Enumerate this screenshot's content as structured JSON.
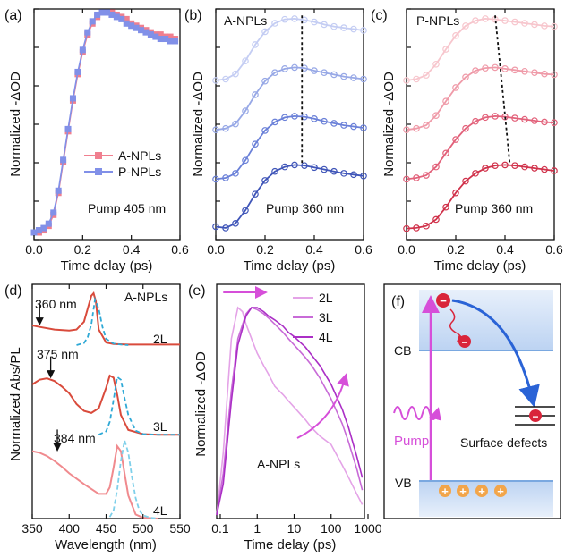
{
  "chart_data": [
    {
      "panel": "(a)",
      "type": "line",
      "xlabel": "Time delay (ps)",
      "ylabel": "Normalized -ΔOD",
      "xlim": [
        0,
        0.6
      ],
      "xticks": [
        "0.0",
        "0.2",
        "0.4",
        "0.6"
      ],
      "annotation": "Pump 405 nm",
      "legend": [
        "A-NPLs",
        "P-NPLs"
      ],
      "series": [
        {
          "name": "A-NPLs",
          "color": "#f07f8f",
          "x": [
            0.0,
            0.02,
            0.04,
            0.06,
            0.08,
            0.1,
            0.12,
            0.14,
            0.16,
            0.18,
            0.2,
            0.22,
            0.24,
            0.26,
            0.28,
            0.3,
            0.32,
            0.34,
            0.36,
            0.38,
            0.4,
            0.42,
            0.44,
            0.46,
            0.48,
            0.5,
            0.52,
            0.54,
            0.56,
            0.58
          ],
          "y": [
            0.0,
            0.0,
            0.01,
            0.03,
            0.08,
            0.18,
            0.32,
            0.46,
            0.6,
            0.72,
            0.82,
            0.9,
            0.95,
            0.98,
            1.0,
            1.0,
            1.0,
            0.99,
            0.98,
            0.97,
            0.95,
            0.94,
            0.93,
            0.92,
            0.91,
            0.9,
            0.9,
            0.89,
            0.89,
            0.88
          ]
        },
        {
          "name": "P-NPLs",
          "color": "#8190e8",
          "x": [
            0.0,
            0.02,
            0.04,
            0.06,
            0.08,
            0.1,
            0.12,
            0.14,
            0.16,
            0.18,
            0.2,
            0.22,
            0.24,
            0.26,
            0.28,
            0.3,
            0.32,
            0.34,
            0.36,
            0.38,
            0.4,
            0.42,
            0.44,
            0.46,
            0.48,
            0.5,
            0.52,
            0.54,
            0.56,
            0.58
          ],
          "y": [
            0.0,
            0.01,
            0.02,
            0.04,
            0.09,
            0.19,
            0.33,
            0.47,
            0.61,
            0.73,
            0.83,
            0.91,
            0.96,
            0.99,
            1.0,
            1.0,
            0.99,
            0.98,
            0.97,
            0.95,
            0.94,
            0.93,
            0.92,
            0.91,
            0.9,
            0.89,
            0.88,
            0.88,
            0.87,
            0.87
          ]
        }
      ]
    },
    {
      "panel": "(b)",
      "type": "line",
      "title": "A-NPLs",
      "xlabel": "Time delay (ps)",
      "ylabel": "Normalized -ΔOD",
      "xlim": [
        0,
        0.6
      ],
      "xticks": [
        "0.0",
        "0.2",
        "0.4",
        "0.6"
      ],
      "annotation": "Pump 360 nm",
      "peak_marker_x": [
        0.35,
        0.35
      ],
      "offsets": [
        0.0,
        0.75,
        1.5,
        2.25
      ],
      "ylim": [
        -0.15,
        3.4
      ],
      "colors": [
        "#3f55b8",
        "#6a80d8",
        "#97a8e6",
        "#c4cdf3"
      ],
      "x": [
        0.0,
        0.04,
        0.08,
        0.12,
        0.16,
        0.2,
        0.24,
        0.28,
        0.32,
        0.36,
        0.4,
        0.44,
        0.48,
        0.52,
        0.56,
        0.6
      ],
      "series": [
        {
          "y": [
            0.05,
            0.03,
            0.1,
            0.3,
            0.55,
            0.76,
            0.9,
            0.97,
            1.0,
            0.99,
            0.96,
            0.93,
            0.9,
            0.87,
            0.85,
            0.83
          ]
        },
        {
          "y": [
            0.03,
            0.05,
            0.12,
            0.32,
            0.57,
            0.78,
            0.91,
            0.98,
            1.0,
            0.99,
            0.96,
            0.92,
            0.89,
            0.86,
            0.84,
            0.82
          ]
        },
        {
          "y": [
            0.04,
            0.06,
            0.13,
            0.33,
            0.58,
            0.79,
            0.92,
            0.98,
            1.0,
            0.99,
            0.95,
            0.92,
            0.89,
            0.86,
            0.84,
            0.82
          ]
        },
        {
          "y": [
            0.05,
            0.07,
            0.15,
            0.35,
            0.6,
            0.8,
            0.93,
            0.99,
            1.0,
            0.98,
            0.95,
            0.91,
            0.88,
            0.86,
            0.84,
            0.82
          ]
        }
      ]
    },
    {
      "panel": "(c)",
      "type": "line",
      "title": "P-NPLs",
      "xlabel": "Time delay (ps)",
      "ylabel": "Normalized -ΔOD",
      "xlim": [
        0,
        0.6
      ],
      "xticks": [
        "0.0",
        "0.2",
        "0.4",
        "0.6"
      ],
      "annotation": "Pump 360 nm",
      "peak_marker_x": [
        0.36,
        0.42
      ],
      "offsets": [
        0.0,
        0.75,
        1.5,
        2.25
      ],
      "ylim": [
        -0.15,
        3.4
      ],
      "colors": [
        "#d0314a",
        "#e2617a",
        "#ef9aa8",
        "#f7c6cd"
      ],
      "x": [
        0.0,
        0.04,
        0.08,
        0.12,
        0.16,
        0.2,
        0.24,
        0.28,
        0.32,
        0.36,
        0.4,
        0.44,
        0.48,
        0.52,
        0.56,
        0.6
      ],
      "series": [
        {
          "y": [
            0.02,
            0.03,
            0.06,
            0.16,
            0.35,
            0.57,
            0.75,
            0.87,
            0.95,
            0.99,
            1.0,
            0.99,
            0.97,
            0.95,
            0.93,
            0.91
          ]
        },
        {
          "y": [
            0.03,
            0.05,
            0.09,
            0.22,
            0.43,
            0.64,
            0.81,
            0.92,
            0.98,
            1.0,
            0.99,
            0.97,
            0.95,
            0.93,
            0.91,
            0.9
          ]
        },
        {
          "y": [
            0.04,
            0.06,
            0.11,
            0.26,
            0.48,
            0.69,
            0.85,
            0.95,
            0.99,
            1.0,
            0.98,
            0.96,
            0.94,
            0.92,
            0.9,
            0.89
          ]
        },
        {
          "y": [
            0.05,
            0.07,
            0.13,
            0.3,
            0.53,
            0.74,
            0.89,
            0.97,
            1.0,
            0.99,
            0.97,
            0.95,
            0.93,
            0.91,
            0.89,
            0.88
          ]
        }
      ]
    },
    {
      "panel": "(d)",
      "type": "line",
      "title": "A-NPLs",
      "xlabel": "Wavelength (nm)",
      "ylabel": "Normalized Abs/PL",
      "xlim": [
        350,
        550
      ],
      "xticks": [
        "350",
        "400",
        "450",
        "500",
        "550"
      ],
      "groups": [
        {
          "label": "2L",
          "arrow_label": "360 nm",
          "arrow_x": 360,
          "absorption_color": "#d94b3c",
          "pl_color": "#2fa9d6",
          "absorption": {
            "x": [
              350,
              360,
              380,
              400,
              410,
              420,
              425,
              430,
              433,
              436,
              440,
              450,
              460,
              480,
              500,
              520,
              550
            ],
            "y": [
              0.38,
              0.35,
              0.3,
              0.28,
              0.3,
              0.45,
              0.7,
              0.95,
              1.0,
              0.85,
              0.3,
              0.05,
              0.02,
              0.01,
              0.01,
              0.01,
              0.01
            ]
          },
          "pl": {
            "x": [
              410,
              420,
              425,
              430,
              435,
              440,
              445,
              450,
              460,
              470,
              480
            ],
            "y": [
              0.0,
              0.04,
              0.15,
              0.4,
              0.88,
              0.7,
              0.35,
              0.12,
              0.03,
              0.01,
              0.0
            ]
          }
        },
        {
          "label": "3L",
          "arrow_label": "375 nm",
          "arrow_x": 375,
          "absorption_color": "#d94b3c",
          "pl_color": "#2fa9d6",
          "absorption": {
            "x": [
              350,
              360,
              370,
              380,
              390,
              400,
              410,
              420,
              430,
              440,
              450,
              455,
              460,
              465,
              470,
              480,
              500,
              520,
              550
            ],
            "y": [
              0.75,
              0.82,
              0.84,
              0.8,
              0.72,
              0.62,
              0.46,
              0.36,
              0.33,
              0.4,
              0.7,
              0.88,
              0.85,
              0.6,
              0.3,
              0.08,
              0.02,
              0.01,
              0.01
            ]
          },
          "pl": {
            "x": [
              440,
              450,
              455,
              460,
              465,
              470,
              475,
              480,
              490,
              500,
              520,
              550
            ],
            "y": [
              0.01,
              0.06,
              0.2,
              0.52,
              0.86,
              0.82,
              0.55,
              0.3,
              0.07,
              0.02,
              0.01,
              0.01
            ]
          }
        },
        {
          "label": "4L",
          "arrow_label": "384 nm",
          "arrow_x": 384,
          "absorption_color": "#f08a8e",
          "pl_color": "#7fd0ea",
          "absorption": {
            "x": [
              350,
              360,
              370,
              380,
              390,
              400,
              420,
              440,
              450,
              455,
              460,
              465,
              470,
              475,
              480,
              490,
              500,
              520
            ],
            "y": [
              0.82,
              0.8,
              0.76,
              0.7,
              0.63,
              0.55,
              0.42,
              0.3,
              0.3,
              0.38,
              0.62,
              0.88,
              0.82,
              0.55,
              0.28,
              0.05,
              0.01,
              0.0
            ]
          },
          "pl": {
            "x": [
              455,
              460,
              465,
              470,
              475,
              480,
              485,
              490,
              495,
              500,
              510,
              520
            ],
            "y": [
              0.02,
              0.1,
              0.35,
              0.7,
              0.95,
              0.8,
              0.5,
              0.25,
              0.1,
              0.04,
              0.01,
              0.0
            ]
          }
        }
      ]
    },
    {
      "panel": "(e)",
      "type": "line",
      "title": "A-NPLs",
      "xlabel": "Time delay (ps)",
      "ylabel": "Normalized -ΔOD",
      "xscale": "log",
      "xlim": [
        0.08,
        800
      ],
      "xticks": [
        "0.1",
        "1",
        "10",
        "100",
        "1000"
      ],
      "legend": [
        "2L",
        "3L",
        "4L"
      ],
      "series": [
        {
          "name": "2L",
          "color": "#e4a3e7",
          "x": [
            0.08,
            0.12,
            0.2,
            0.3,
            0.4,
            0.5,
            0.7,
            1,
            1.5,
            2,
            3,
            5,
            7,
            10,
            20,
            30,
            50,
            100,
            200,
            300,
            500,
            700
          ],
          "y": [
            0.0,
            0.3,
            0.85,
            1.0,
            0.98,
            0.92,
            0.85,
            0.78,
            0.72,
            0.68,
            0.62,
            0.58,
            0.55,
            0.52,
            0.46,
            0.42,
            0.38,
            0.34,
            0.24,
            0.18,
            0.1,
            0.05
          ]
        },
        {
          "name": "3L",
          "color": "#c86bd7",
          "x": [
            0.08,
            0.12,
            0.2,
            0.3,
            0.5,
            0.7,
            1,
            1.5,
            2,
            3,
            5,
            7,
            10,
            20,
            30,
            50,
            100,
            200,
            300,
            500,
            700
          ],
          "y": [
            0.0,
            0.2,
            0.6,
            0.85,
            0.97,
            1.0,
            0.99,
            0.97,
            0.95,
            0.92,
            0.88,
            0.85,
            0.82,
            0.76,
            0.72,
            0.66,
            0.56,
            0.44,
            0.35,
            0.22,
            0.12
          ]
        },
        {
          "name": "4L",
          "color": "#ab2fc6",
          "x": [
            0.08,
            0.12,
            0.2,
            0.3,
            0.5,
            0.7,
            1,
            1.5,
            2,
            3,
            5,
            7,
            10,
            20,
            30,
            50,
            100,
            200,
            300,
            500,
            700
          ],
          "y": [
            0.0,
            0.15,
            0.55,
            0.82,
            0.96,
            1.0,
            1.0,
            0.98,
            0.96,
            0.94,
            0.91,
            0.88,
            0.86,
            0.81,
            0.77,
            0.72,
            0.63,
            0.51,
            0.42,
            0.28,
            0.18
          ]
        }
      ]
    }
  ],
  "panel_labels": {
    "a": "(a)",
    "b": "(b)",
    "c": "(c)",
    "d": "(d)",
    "e": "(e)",
    "f": "(f)"
  },
  "texts": {
    "a_title": "",
    "b_title": "A-NPLs",
    "c_title": "P-NPLs",
    "d_title": "A-NPLs",
    "e_title": "A-NPLs",
    "pump405": "Pump 405 nm",
    "pump360": "Pump 360 nm",
    "legend_a": "A-NPLs",
    "legend_p": "P-NPLs",
    "ylabel_dod": "Normalized -ΔOD",
    "ylabel_abs": "Normalized Abs/PL",
    "xlabel_time": "Time delay (ps)",
    "xlabel_wl": "Wavelength (nm)",
    "arrow_360": "360 nm",
    "arrow_375": "375 nm",
    "arrow_384": "384 nm",
    "label_2L": "2L",
    "label_3L": "3L",
    "label_4L": "4L"
  },
  "ticks": {
    "t06": [
      "0.0",
      "0.2",
      "0.4",
      "0.6"
    ],
    "wl": [
      "350",
      "400",
      "450",
      "500",
      "550"
    ],
    "log": [
      "0.1",
      "1",
      "10",
      "100",
      "1000"
    ]
  },
  "diagram": {
    "cb": "CB",
    "vb": "VB",
    "pump": "Pump",
    "surface_defects": "Surface defects",
    "electron": "−",
    "hole": "+",
    "colors": {
      "band": "#cfe0f7",
      "band_edge": "#7aa8e0",
      "arrow_pump": "#d64fd9",
      "arrow_trap": "#2a63d6",
      "electron": "#d9243a",
      "hole": "#f2a54a"
    }
  }
}
